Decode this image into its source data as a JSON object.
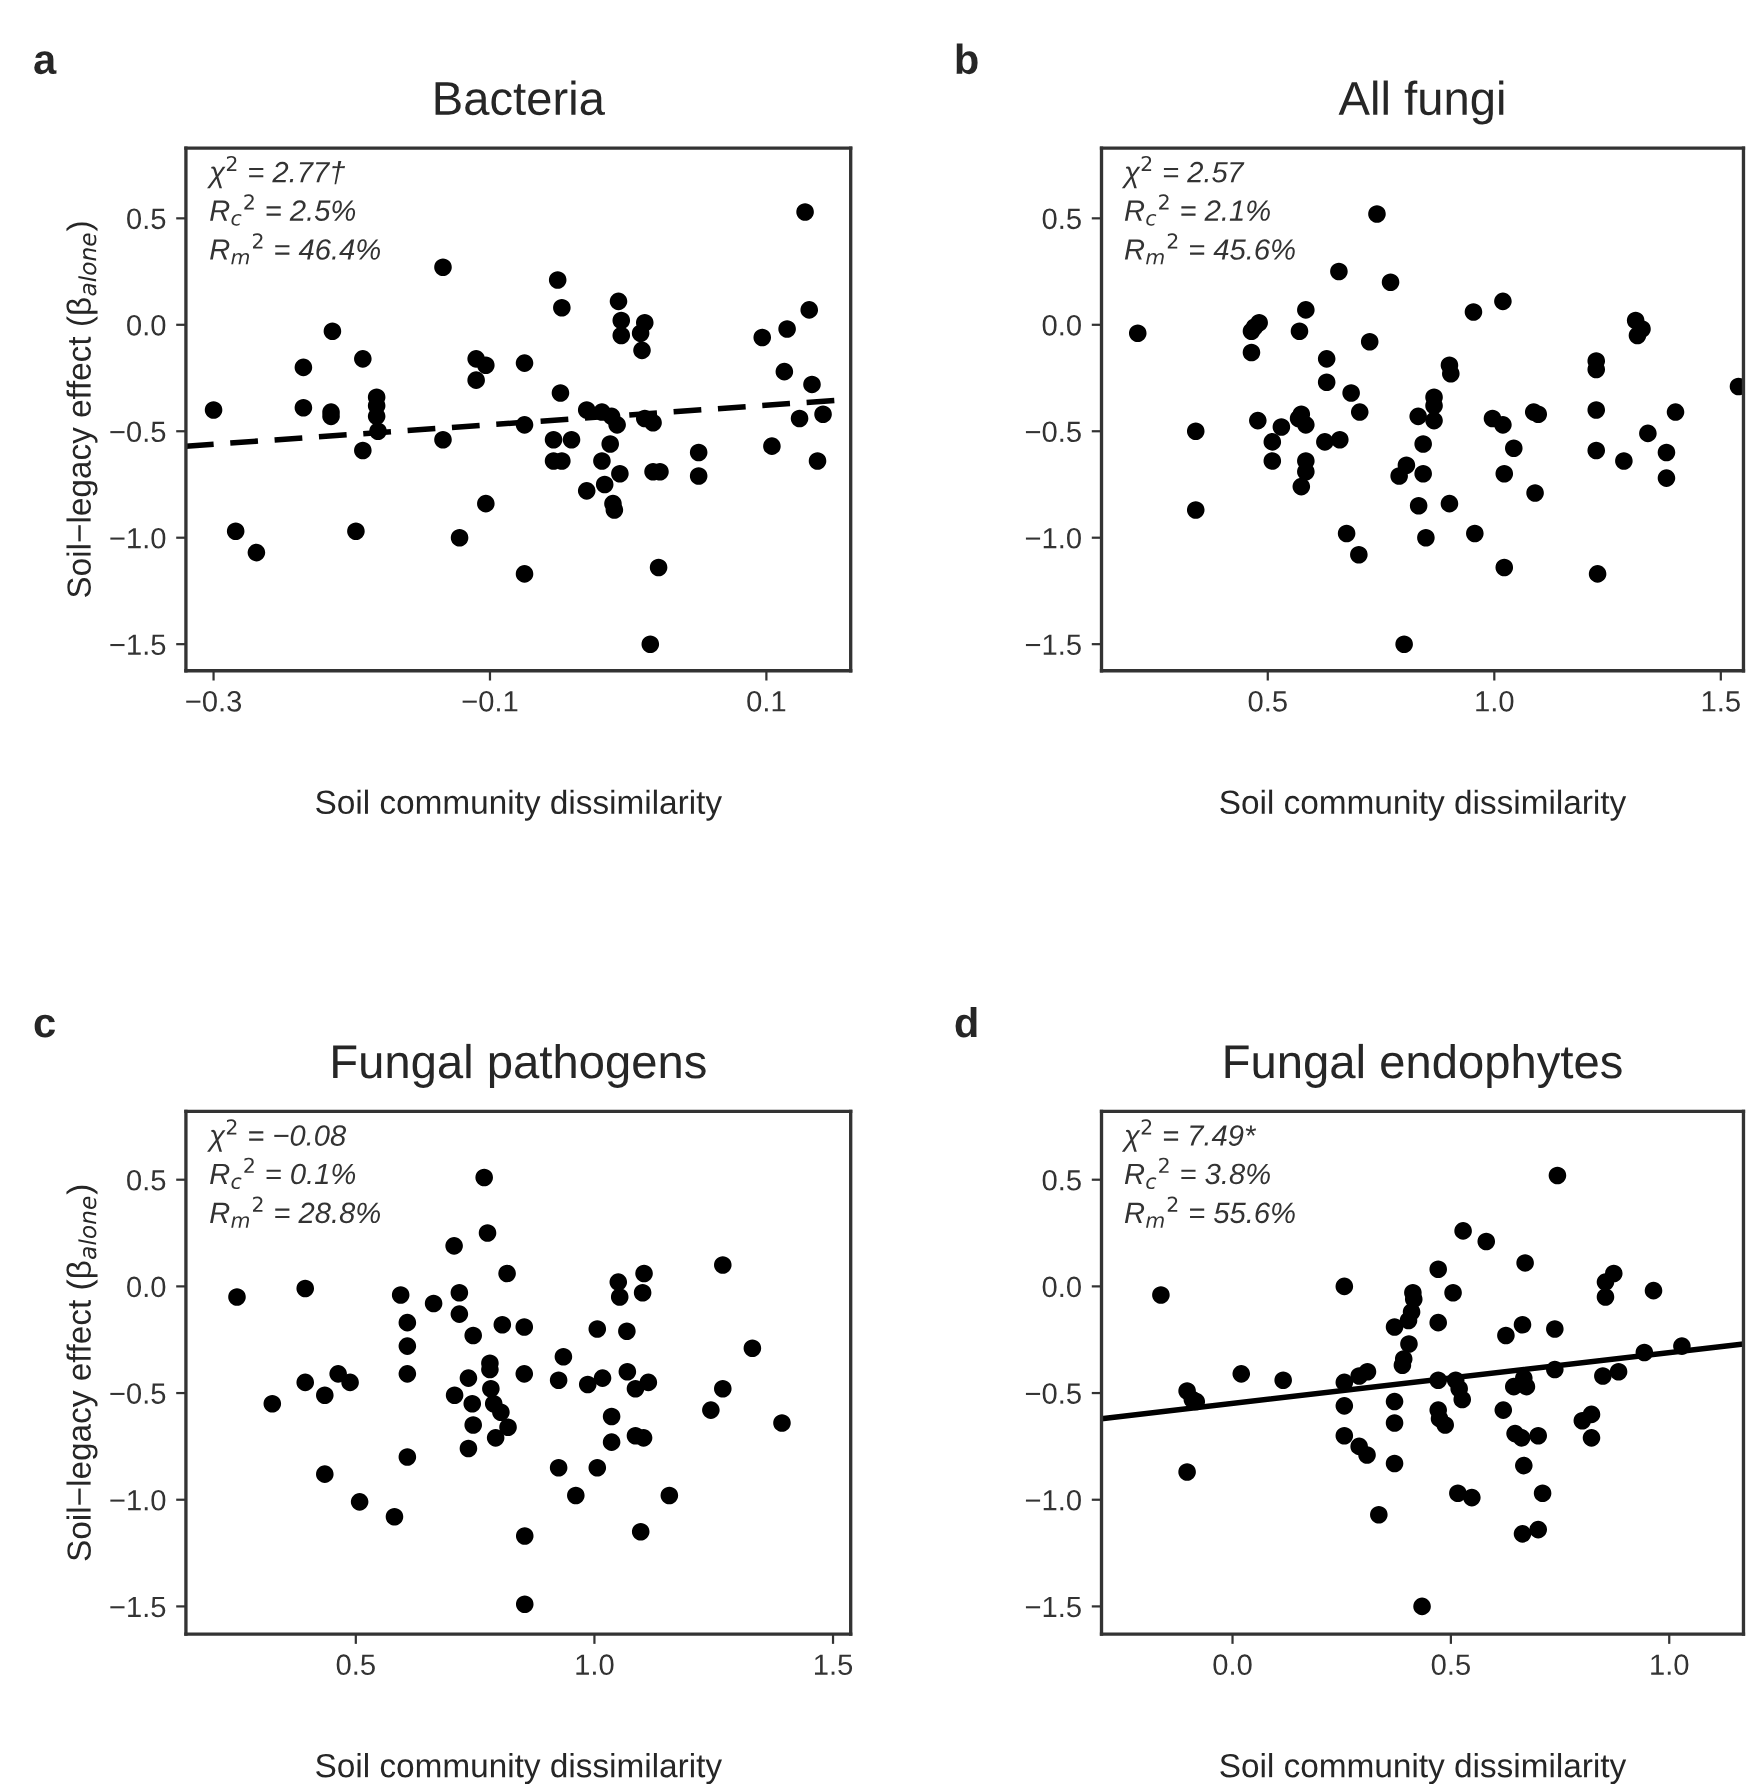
{
  "chart_data": [
    {
      "type": "scatter",
      "title": "Bacteria",
      "xlabel": "Soil community dissimilarity",
      "ylabel": "Soil−legacy effect (β$_{alone}$)",
      "annotations": [
        "a",
        "χ$^{2}$ = 2.77†",
        "R$_{c}$$^{2}$ = 2.5%",
        "R$_{m}$$^{2}$ = 46.4%"
      ],
      "xlim": [
        -0.32,
        0.161
      ],
      "xticks": [
        {
          "value": -0.3,
          "label": "−0.3"
        },
        {
          "value": -0.1,
          "label": "−0.1"
        },
        0.1
      ],
      "ylim": [
        -1.625,
        0.83
      ],
      "yticks": [
        {
          "value": 0.5,
          "label": "0.5"
        },
        {
          "value": 0,
          "label": "0.0"
        },
        {
          "value": -0.5,
          "label": "−0.5"
        },
        {
          "value": -1.0,
          "label": "−1.0"
        },
        {
          "value": -1.5,
          "label": "−1.5"
        }
      ],
      "grid": false,
      "legend": false,
      "marker": "circle",
      "series": [
        {
          "color": "#000000",
          "x": [
            -0.3,
            -0.284,
            -0.269,
            -0.235,
            -0.235,
            -0.215,
            -0.215,
            -0.214,
            -0.197,
            -0.192,
            -0.192,
            -0.182,
            -0.182,
            -0.182,
            -0.181,
            -0.134,
            -0.134,
            -0.122,
            -0.11,
            -0.11,
            -0.103,
            -0.103,
            -0.075,
            -0.075,
            -0.075,
            -0.051,
            -0.049,
            -0.048,
            -0.054,
            -0.054,
            -0.048,
            -0.041,
            -0.03,
            -0.03,
            -0.019,
            -0.019,
            -0.017,
            -0.013,
            -0.012,
            -0.011,
            -0.01,
            -0.008,
            -0.007,
            -0.006,
            -0.005,
            -0.005,
            0.009,
            0.012,
            0.01,
            0.012,
            0.018,
            0.016,
            0.018,
            0.023,
            0.022,
            0.051,
            0.051,
            0.097,
            0.104,
            0.113,
            0.115,
            0.124,
            0.128,
            0.131,
            0.133,
            0.137,
            0.141
          ],
          "values": [
            -0.4,
            -0.97,
            -1.07,
            -0.2,
            -0.39,
            -0.41,
            -0.43,
            -0.03,
            -0.97,
            -0.16,
            -0.59,
            -0.34,
            -0.38,
            -0.43,
            -0.5,
            0.27,
            -0.54,
            -1.0,
            -0.16,
            -0.26,
            -0.19,
            -0.84,
            -0.18,
            -0.47,
            -1.17,
            0.21,
            -0.32,
            0.08,
            -0.54,
            -0.64,
            -0.64,
            -0.54,
            -0.4,
            -0.78,
            -0.41,
            -0.64,
            -0.75,
            -0.56,
            -0.43,
            -0.84,
            -0.87,
            -0.47,
            0.11,
            -0.7,
            0.02,
            -0.05,
            -0.04,
            0.01,
            -0.12,
            -0.44,
            -0.46,
            -1.5,
            -0.69,
            -0.69,
            -1.14,
            -0.6,
            -0.71,
            -0.06,
            -0.57,
            -0.22,
            -0.02,
            -0.44,
            0.53,
            0.07,
            -0.28,
            -0.64,
            -0.42
          ]
        },
        {
          "type": "line",
          "color": "#000000",
          "line_style": "dashed",
          "marker": "none",
          "x": [
            -0.32,
            0.161
          ],
          "values": [
            -0.57,
            -0.35
          ]
        }
      ]
    },
    {
      "type": "scatter",
      "title": "All fungi",
      "xlabel": "Soil community dissimilarity",
      "annotations": [
        "b",
        "χ$^{2}$ = 2.57",
        "R$_{c}$$^{2}$ = 2.1%",
        "R$_{m}$$^{2}$ = 45.6%"
      ],
      "xlim": [
        0.133,
        1.55
      ],
      "xticks": [
        0.5,
        {
          "value": 1.0,
          "label": "1.0"
        },
        1.5
      ],
      "ylim": [
        -1.625,
        0.83
      ],
      "yticks": [
        {
          "value": 0.5,
          "label": "0.5"
        },
        {
          "value": 0,
          "label": "0.0"
        },
        {
          "value": -0.5,
          "label": "−0.5"
        },
        {
          "value": -1.0,
          "label": "−1.0"
        },
        {
          "value": -1.5,
          "label": "−1.5"
        }
      ],
      "grid": false,
      "legend": false,
      "marker": "circle",
      "series": [
        {
          "color": "#000000",
          "x": [
            0.213,
            0.341,
            0.341,
            0.464,
            0.464,
            0.471,
            0.481,
            0.478,
            0.51,
            0.51,
            0.53,
            0.568,
            0.57,
            0.574,
            0.574,
            0.584,
            0.584,
            0.584,
            0.584,
            0.63,
            0.63,
            0.626,
            0.657,
            0.659,
            0.674,
            0.684,
            0.703,
            0.701,
            0.725,
            0.741,
            0.771,
            0.79,
            0.806,
            0.801,
            0.832,
            0.833,
            0.843,
            0.843,
            0.849,
            0.867,
            0.867,
            0.867,
            0.901,
            0.904,
            0.901,
            0.954,
            0.957,
            0.996,
            1.019,
            1.019,
            1.022,
            1.022,
            1.043,
            1.087,
            1.097,
            1.09,
            1.225,
            1.225,
            1.225,
            1.225,
            1.228,
            1.286,
            1.312,
            1.316,
            1.326,
            1.339,
            1.38,
            1.38,
            1.4,
            1.539
          ],
          "values": [
            -0.04,
            -0.5,
            -0.87,
            -0.03,
            -0.13,
            -0.01,
            0.01,
            -0.45,
            -0.64,
            -0.55,
            -0.48,
            -0.44,
            -0.03,
            -0.42,
            -0.76,
            0.07,
            -0.47,
            -0.64,
            -0.69,
            -0.16,
            -0.27,
            -0.55,
            0.25,
            -0.54,
            -0.98,
            -0.32,
            -0.41,
            -1.08,
            -0.08,
            0.52,
            0.2,
            -0.71,
            -0.66,
            -1.5,
            -0.43,
            -0.85,
            -0.56,
            -0.7,
            -1.0,
            -0.34,
            -0.38,
            -0.45,
            -0.19,
            -0.23,
            -0.84,
            0.06,
            -0.98,
            -0.44,
            -0.47,
            0.11,
            -0.7,
            -1.14,
            -0.58,
            -0.41,
            -0.42,
            -0.79,
            -0.17,
            -0.21,
            -0.4,
            -0.59,
            -1.17,
            -0.64,
            0.02,
            -0.05,
            -0.02,
            -0.51,
            -0.6,
            -0.72,
            -0.41,
            -0.29
          ]
        }
      ]
    },
    {
      "type": "scatter",
      "title": "Fungal pathogens",
      "xlabel": "Soil community dissimilarity",
      "ylabel": "Soil−legacy effect (β$_{alone}$)",
      "annotations": [
        "c",
        "χ$^{2}$ = −0.08",
        "R$_{c}$$^{2}$ = 0.1%",
        "R$_{m}$$^{2}$ = 28.8%"
      ],
      "xlim": [
        0.144,
        1.537
      ],
      "xticks": [
        0.5,
        {
          "value": 1.0,
          "label": "1.0"
        },
        1.5
      ],
      "ylim": [
        -1.63,
        0.82
      ],
      "yticks": [
        {
          "value": 0.5,
          "label": "0.5"
        },
        {
          "value": 0,
          "label": "0.0"
        },
        {
          "value": -0.5,
          "label": "−0.5"
        },
        {
          "value": -1.0,
          "label": "−1.0"
        },
        {
          "value": -1.5,
          "label": "−1.5"
        }
      ],
      "grid": false,
      "legend": false,
      "marker": "circle",
      "series": [
        {
          "color": "#000000",
          "x": [
            0.251,
            0.325,
            0.394,
            0.394,
            0.435,
            0.435,
            0.463,
            0.488,
            0.508,
            0.581,
            0.594,
            0.608,
            0.608,
            0.608,
            0.608,
            0.663,
            0.706,
            0.707,
            0.717,
            0.717,
            0.736,
            0.736,
            0.744,
            0.746,
            0.746,
            0.769,
            0.776,
            0.781,
            0.781,
            0.783,
            0.789,
            0.793,
            0.804,
            0.807,
            0.817,
            0.819,
            0.853,
            0.853,
            0.854,
            0.854,
            0.925,
            0.925,
            0.935,
            0.961,
            0.986,
            1.006,
            1.006,
            1.017,
            1.036,
            1.036,
            1.05,
            1.053,
            1.068,
            1.069,
            1.086,
            1.086,
            1.101,
            1.104,
            1.097,
            1.103,
            1.113,
            1.157,
            1.244,
            1.269,
            1.269,
            1.331,
            1.393
          ],
          "values": [
            -0.05,
            -0.55,
            -0.01,
            -0.45,
            -0.51,
            -0.88,
            -0.41,
            -0.45,
            -1.01,
            -1.08,
            -0.04,
            -0.17,
            -0.28,
            -0.41,
            -0.8,
            -0.08,
            0.19,
            -0.51,
            -0.03,
            -0.13,
            -0.43,
            -0.76,
            -0.55,
            -0.23,
            -0.65,
            0.51,
            0.25,
            -0.36,
            -0.39,
            -0.48,
            -0.55,
            -0.71,
            -0.59,
            -0.18,
            0.06,
            -0.66,
            -0.41,
            -0.19,
            -1.17,
            -1.49,
            -0.44,
            -0.85,
            -0.33,
            -0.98,
            -0.46,
            -0.2,
            -0.85,
            -0.43,
            -0.61,
            -0.73,
            0.02,
            -0.05,
            -0.21,
            -0.4,
            -0.48,
            -0.7,
            -0.03,
            0.06,
            -1.15,
            -0.71,
            -0.45,
            -0.98,
            -0.58,
            0.1,
            -0.48,
            -0.29,
            -0.64
          ]
        }
      ]
    },
    {
      "type": "scatter",
      "title": "Fungal endophytes",
      "xlabel": "Soil community dissimilarity",
      "annotations": [
        "d",
        "χ$^{2}$ = 7.49*",
        "R$_{c}$$^{2}$ = 3.8%",
        "R$_{m}$$^{2}$ = 55.6%"
      ],
      "xlim": [
        -0.3,
        1.17
      ],
      "xticks": [
        {
          "value": 0,
          "label": "0.0"
        },
        0.5,
        {
          "value": 1.0,
          "label": "1.0"
        }
      ],
      "ylim": [
        -1.63,
        0.82
      ],
      "yticks": [
        {
          "value": 0.5,
          "label": "0.5"
        },
        {
          "value": 0,
          "label": "0.0"
        },
        {
          "value": -0.5,
          "label": "−0.5"
        },
        {
          "value": -1.0,
          "label": "−1.0"
        },
        {
          "value": -1.5,
          "label": "−1.5"
        }
      ],
      "grid": false,
      "legend": false,
      "marker": "circle",
      "series": [
        {
          "color": "#000000",
          "x": [
            -0.164,
            -0.104,
            -0.092,
            -0.083,
            -0.104,
            0.02,
            0.116,
            0.256,
            0.256,
            0.256,
            0.256,
            0.29,
            0.309,
            0.29,
            0.308,
            0.335,
            0.371,
            0.371,
            0.371,
            0.371,
            0.389,
            0.392,
            0.404,
            0.403,
            0.41,
            0.415,
            0.413,
            0.471,
            0.471,
            0.471,
            0.471,
            0.474,
            0.487,
            0.505,
            0.511,
            0.519,
            0.526,
            0.528,
            0.516,
            0.548,
            0.581,
            0.62,
            0.626,
            0.644,
            0.647,
            0.664,
            0.662,
            0.667,
            0.673,
            0.67,
            0.667,
            0.664,
            0.7,
            0.7,
            0.71,
            0.738,
            0.738,
            0.744,
            0.801,
            0.822,
            0.822,
            0.848,
            0.854,
            0.854,
            0.873,
            0.884,
            0.943,
            0.964,
            1.029,
            0.434
          ],
          "values": [
            -0.04,
            -0.49,
            -0.53,
            -0.54,
            -0.87,
            -0.41,
            -0.44,
            0.0,
            -0.45,
            -0.56,
            -0.7,
            -0.42,
            -0.4,
            -0.75,
            -0.79,
            -1.07,
            -0.19,
            -0.54,
            -0.64,
            -0.83,
            -0.37,
            -0.34,
            -0.27,
            -0.16,
            -0.12,
            -0.06,
            -0.03,
            0.08,
            -0.17,
            -0.44,
            -0.58,
            -0.62,
            -0.65,
            -0.03,
            -0.44,
            -0.48,
            -0.53,
            0.26,
            -0.97,
            -0.99,
            0.21,
            -0.58,
            -0.23,
            -0.47,
            -0.69,
            -0.18,
            -0.71,
            -0.43,
            -0.47,
            0.11,
            -0.84,
            -1.16,
            -0.7,
            -1.14,
            -0.97,
            -0.2,
            -0.39,
            0.52,
            -0.63,
            -0.6,
            -0.71,
            -0.42,
            -0.05,
            0.02,
            0.06,
            -0.4,
            -0.31,
            -0.02,
            -0.28,
            -1.5
          ]
        },
        {
          "type": "line",
          "color": "#000000",
          "line_style": "solid",
          "marker": "none",
          "x": [
            -0.3,
            1.17
          ],
          "values": [
            -0.62,
            -0.27
          ]
        }
      ]
    }
  ]
}
